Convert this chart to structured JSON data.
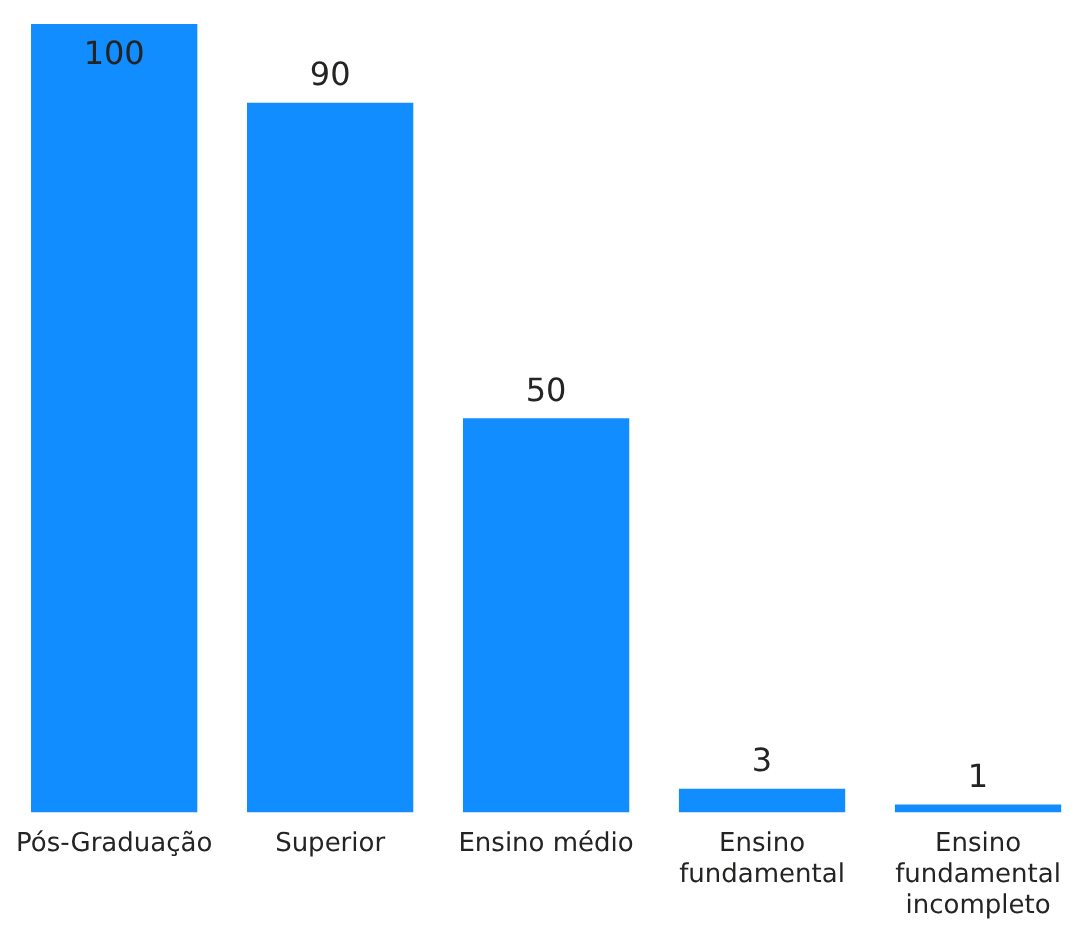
{
  "chart_data": {
    "type": "bar",
    "categories": [
      "Pós-Graduação",
      "Superior",
      "Ensino médio",
      "Ensino fundamental",
      "Ensino fundamental incompleto"
    ],
    "values": [
      100,
      90,
      50,
      3,
      1
    ],
    "color": "#118dff",
    "data_labels": true,
    "grid": false,
    "legend": false
  }
}
